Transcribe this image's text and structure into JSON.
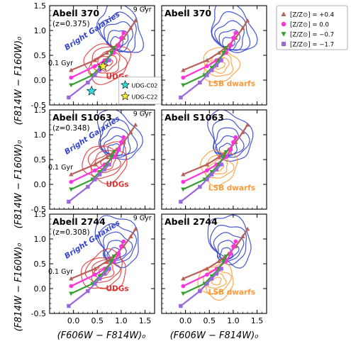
{
  "figure": {
    "ylabel": "(F814W − F160W)₀",
    "xlabel": "(F606W − F814W)₀"
  },
  "legend": {
    "entries": [
      {
        "label": "[Z/Z⊙] = +0.4",
        "color": "#b5615a",
        "marker": "triangle-up"
      },
      {
        "label": "[Z/Z⊙] = 0.0",
        "color": "#ff33dd",
        "marker": "circle"
      },
      {
        "label": "[Z/Z⊙] = −0.7",
        "color": "#33a02c",
        "marker": "triangle-down"
      },
      {
        "label": "[Z/Z⊙] = −1.7",
        "color": "#9966dd",
        "marker": "square"
      }
    ]
  },
  "colors": {
    "bright": "#3344cc",
    "udg": "#dd3333",
    "lsb": "#ff9933",
    "star_c02": "#33dddd",
    "star_c22": "#ffee33"
  },
  "chart_data": {
    "type": "scatter",
    "xlim": [
      -0.5,
      1.7
    ],
    "ylim": [
      -0.5,
      1.5
    ],
    "xticks": [
      0.0,
      0.5,
      1.0,
      1.5
    ],
    "yticks": [
      -0.5,
      0.0,
      0.5,
      1.0,
      1.5
    ],
    "age_labels": {
      "young": "0.1 Gyr",
      "old": "9 Gyr"
    },
    "bright_label": "Bright Galaxies",
    "udg_label": "UDGs",
    "lsb_label": "LSB dwarfs",
    "stars": [
      {
        "name": "UDG-C02",
        "x": 0.38,
        "y": -0.22,
        "color": "#33dddd"
      },
      {
        "name": "UDG-C22",
        "x": 0.62,
        "y": 0.28,
        "color": "#ffee33"
      }
    ],
    "tracks": [
      {
        "Z": "+0.4",
        "color": "#b5615a",
        "marker": "triangle-up",
        "points": [
          [
            -0.05,
            0.2
          ],
          [
            0.45,
            0.4
          ],
          [
            0.7,
            0.55
          ],
          [
            0.9,
            0.7
          ],
          [
            1.05,
            0.85
          ],
          [
            1.2,
            1.05
          ],
          [
            1.3,
            1.2
          ]
        ]
      },
      {
        "Z": "0.0",
        "color": "#ff33dd",
        "marker": "circle",
        "points": [
          [
            -0.05,
            0.05
          ],
          [
            0.45,
            0.28
          ],
          [
            0.65,
            0.4
          ],
          [
            0.85,
            0.55
          ],
          [
            0.95,
            0.7
          ],
          [
            1.0,
            0.85
          ],
          [
            1.05,
            0.95
          ]
        ]
      },
      {
        "Z": "-0.7",
        "color": "#33a02c",
        "marker": "triangle-down",
        "points": [
          [
            -0.05,
            -0.1
          ],
          [
            0.4,
            0.1
          ],
          [
            0.55,
            0.25
          ],
          [
            0.7,
            0.4
          ],
          [
            0.8,
            0.55
          ],
          [
            0.85,
            0.65
          ]
        ]
      },
      {
        "Z": "-1.7",
        "color": "#9966dd",
        "marker": "square",
        "points": [
          [
            -0.1,
            -0.35
          ],
          [
            0.3,
            -0.05
          ],
          [
            0.45,
            0.1
          ],
          [
            0.55,
            0.2
          ],
          [
            0.65,
            0.3
          ],
          [
            0.75,
            0.4
          ]
        ]
      }
    ],
    "panels": [
      {
        "row": 0,
        "col": 0,
        "title": "Abell 370",
        "redshift": "(z=0.375)",
        "sample": "UDGs",
        "bright_center": [
          0.9,
          0.75
        ],
        "sample_center": [
          0.7,
          0.35
        ],
        "show_stars": true
      },
      {
        "row": 0,
        "col": 1,
        "title": "Abell 370",
        "redshift": "",
        "sample": "LSB dwarfs",
        "bright_center": [
          0.9,
          0.75
        ],
        "sample_center": [
          0.72,
          0.3
        ],
        "show_stars": false
      },
      {
        "row": 1,
        "col": 0,
        "title": "Abell S1063",
        "redshift": "(z=0.348)",
        "sample": "UDGs",
        "bright_center": [
          0.85,
          0.7
        ],
        "sample_center": [
          0.68,
          0.45
        ],
        "show_stars": false
      },
      {
        "row": 1,
        "col": 1,
        "title": "Abell S1063",
        "redshift": "",
        "sample": "LSB dwarfs",
        "bright_center": [
          0.85,
          0.7
        ],
        "sample_center": [
          0.7,
          0.35
        ],
        "show_stars": false
      },
      {
        "row": 2,
        "col": 0,
        "title": "Abell 2744",
        "redshift": "(z=0.308)",
        "sample": "UDGs",
        "bright_center": [
          0.85,
          0.7
        ],
        "sample_center": [
          0.65,
          0.35
        ],
        "show_stars": false
      },
      {
        "row": 2,
        "col": 1,
        "title": "Abell 2744",
        "redshift": "",
        "sample": "LSB dwarfs",
        "bright_center": [
          0.85,
          0.7
        ],
        "sample_center": [
          0.65,
          0.15
        ],
        "show_stars": false
      }
    ]
  }
}
